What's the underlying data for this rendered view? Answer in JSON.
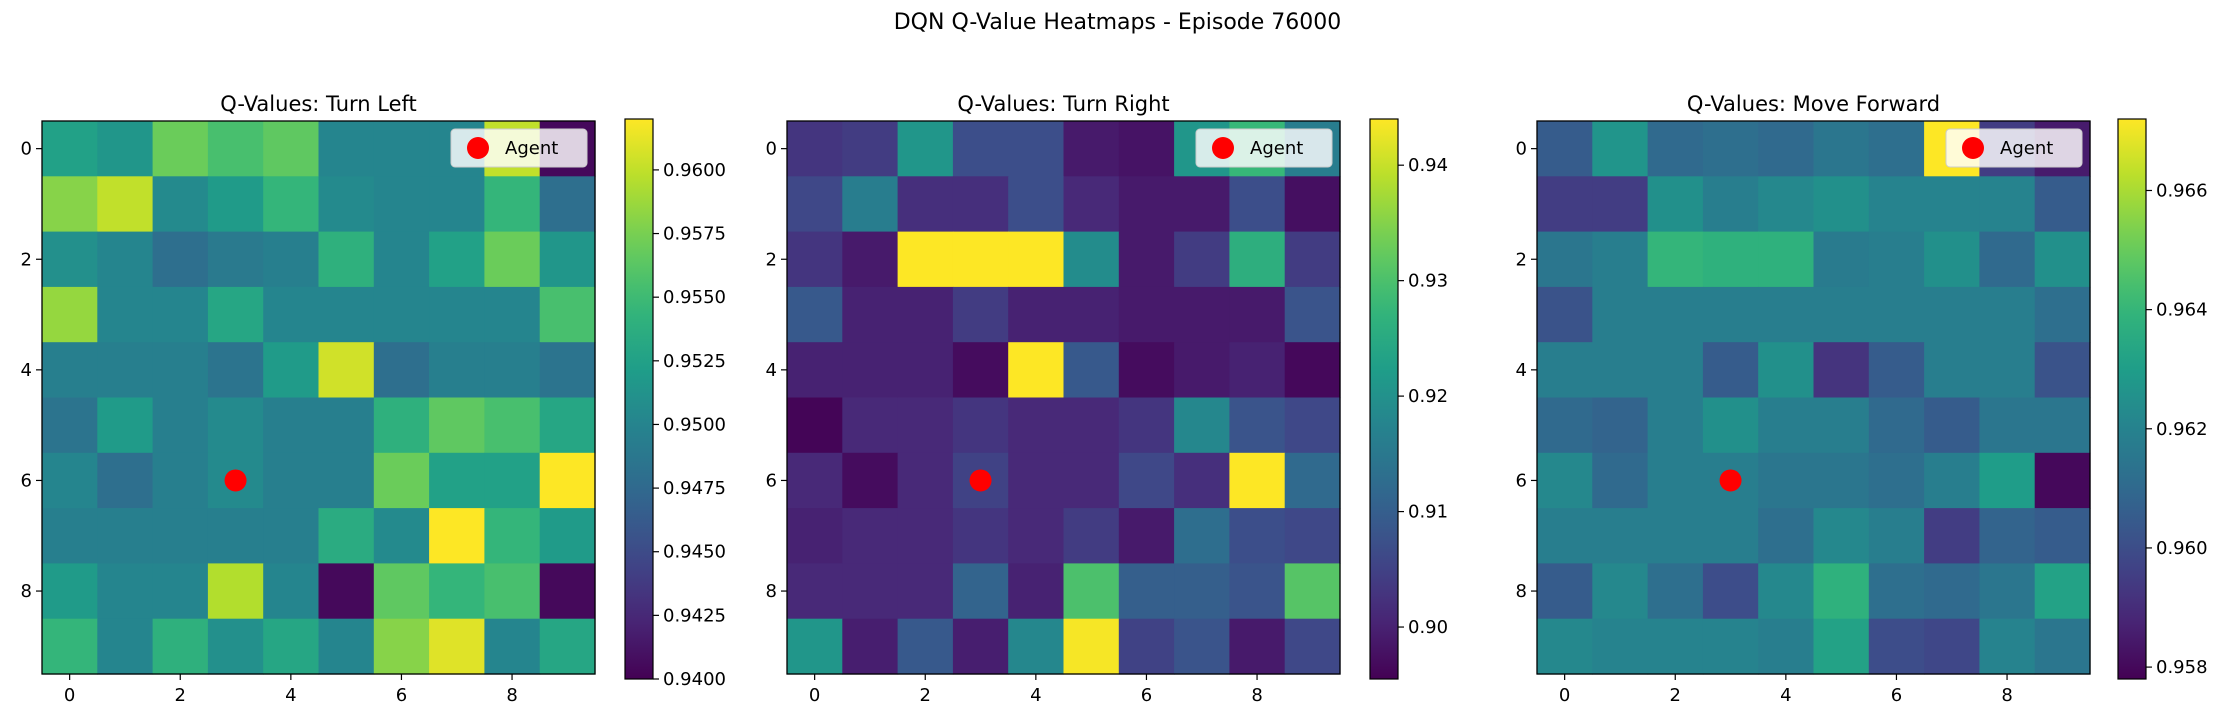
{
  "figure": {
    "suptitle": "DQN Q-Value Heatmaps - Episode 76000"
  },
  "colormap": "viridis",
  "chart_data": [
    {
      "type": "heatmap",
      "title": "Q-Values: Turn Left",
      "xticks": [
        0,
        2,
        4,
        6,
        8
      ],
      "yticks": [
        0,
        2,
        4,
        6,
        8
      ],
      "vmin": 0.94,
      "vmax": 0.962,
      "colorbar_ticks": [
        "0.9400",
        "0.9425",
        "0.9450",
        "0.9475",
        "0.9500",
        "0.9525",
        "0.9550",
        "0.9575",
        "0.9600"
      ],
      "agent": {
        "x": 3,
        "y": 6,
        "label": "Agent",
        "color": "#ff0000"
      },
      "legend": {
        "label": "Agent",
        "position": "upper-right"
      },
      "values": [
        [
          0.9525,
          0.9515,
          0.957,
          0.9555,
          0.9565,
          0.95,
          0.95,
          0.95,
          0.96,
          0.9405
        ],
        [
          0.958,
          0.96,
          0.9505,
          0.952,
          0.9545,
          0.9505,
          0.95,
          0.95,
          0.9545,
          0.948
        ],
        [
          0.951,
          0.95,
          0.948,
          0.949,
          0.9495,
          0.954,
          0.95,
          0.9525,
          0.957,
          0.9515
        ],
        [
          0.9585,
          0.95,
          0.95,
          0.953,
          0.95,
          0.95,
          0.95,
          0.95,
          0.95,
          0.9555
        ],
        [
          0.9495,
          0.9495,
          0.9495,
          0.9485,
          0.952,
          0.9605,
          0.948,
          0.9495,
          0.9495,
          0.9485
        ],
        [
          0.9485,
          0.952,
          0.9495,
          0.9505,
          0.9495,
          0.9495,
          0.954,
          0.9565,
          0.9555,
          0.953
        ],
        [
          0.95,
          0.948,
          0.9495,
          0.9505,
          0.9495,
          0.9495,
          0.957,
          0.9525,
          0.9525,
          0.962
        ],
        [
          0.9495,
          0.9495,
          0.9495,
          0.9495,
          0.9495,
          0.9535,
          0.9505,
          0.962,
          0.9545,
          0.952
        ],
        [
          0.952,
          0.95,
          0.95,
          0.9595,
          0.95,
          0.9405,
          0.9565,
          0.9545,
          0.9555,
          0.9405
        ],
        [
          0.9545,
          0.95,
          0.954,
          0.951,
          0.953,
          0.95,
          0.958,
          0.961,
          0.95,
          0.953
        ]
      ]
    },
    {
      "type": "heatmap",
      "title": "Q-Values: Turn Right",
      "xticks": [
        0,
        2,
        4,
        6,
        8
      ],
      "yticks": [
        0,
        2,
        4,
        6,
        8
      ],
      "vmin": 0.8955,
      "vmax": 0.944,
      "colorbar_ticks": [
        "0.90",
        "0.91",
        "0.92",
        "0.93",
        "0.94"
      ],
      "agent": {
        "x": 3,
        "y": 6,
        "label": "Agent",
        "color": "#ff0000"
      },
      "legend": {
        "label": "Agent",
        "position": "upper-right"
      },
      "values": [
        [
          0.903,
          0.904,
          0.921,
          0.907,
          0.907,
          0.899,
          0.898,
          0.921,
          0.928,
          0.916
        ],
        [
          0.906,
          0.916,
          0.902,
          0.902,
          0.907,
          0.901,
          0.899,
          0.899,
          0.907,
          0.8975
        ],
        [
          0.903,
          0.899,
          0.944,
          0.944,
          0.944,
          0.919,
          0.899,
          0.904,
          0.926,
          0.904
        ],
        [
          0.909,
          0.9,
          0.9,
          0.904,
          0.9,
          0.9,
          0.899,
          0.899,
          0.899,
          0.908
        ],
        [
          0.9,
          0.9,
          0.9,
          0.897,
          0.944,
          0.909,
          0.897,
          0.899,
          0.9,
          0.8965
        ],
        [
          0.896,
          0.901,
          0.901,
          0.903,
          0.901,
          0.901,
          0.903,
          0.918,
          0.908,
          0.906
        ],
        [
          0.901,
          0.897,
          0.901,
          0.905,
          0.901,
          0.901,
          0.906,
          0.902,
          0.944,
          0.912
        ],
        [
          0.9,
          0.901,
          0.901,
          0.903,
          0.901,
          0.904,
          0.899,
          0.913,
          0.907,
          0.906
        ],
        [
          0.901,
          0.901,
          0.901,
          0.911,
          0.9,
          0.93,
          0.91,
          0.91,
          0.908,
          0.931
        ],
        [
          0.921,
          0.8995,
          0.909,
          0.8995,
          0.918,
          0.9435,
          0.905,
          0.908,
          0.899,
          0.906
        ]
      ]
    },
    {
      "type": "heatmap",
      "title": "Q-Values: Move Forward",
      "xticks": [
        0,
        2,
        4,
        6,
        8
      ],
      "yticks": [
        0,
        2,
        4,
        6,
        8
      ],
      "vmin": 0.9578,
      "vmax": 0.9672,
      "colorbar_ticks": [
        "0.958",
        "0.960",
        "0.962",
        "0.964",
        "0.966"
      ],
      "agent": {
        "x": 3,
        "y": 6,
        "label": "Agent",
        "color": "#ff0000"
      },
      "legend": {
        "label": "Agent",
        "position": "upper-right"
      },
      "values": [
        [
          0.9605,
          0.9627,
          0.961,
          0.9612,
          0.961,
          0.9615,
          0.9612,
          0.9672,
          0.9595,
          0.9585
        ],
        [
          0.9595,
          0.9595,
          0.9625,
          0.9618,
          0.9622,
          0.9625,
          0.962,
          0.962,
          0.962,
          0.9605
        ],
        [
          0.9615,
          0.9618,
          0.964,
          0.9638,
          0.9638,
          0.9617,
          0.9618,
          0.9625,
          0.961,
          0.9625
        ],
        [
          0.9602,
          0.9618,
          0.9618,
          0.9618,
          0.9618,
          0.9618,
          0.9618,
          0.9618,
          0.9618,
          0.9612
        ],
        [
          0.9618,
          0.9618,
          0.9618,
          0.9605,
          0.9625,
          0.9592,
          0.9605,
          0.9618,
          0.9618,
          0.9602
        ],
        [
          0.961,
          0.9608,
          0.9618,
          0.9625,
          0.9618,
          0.9618,
          0.961,
          0.9605,
          0.9615,
          0.9615
        ],
        [
          0.9622,
          0.961,
          0.9618,
          0.9618,
          0.9615,
          0.9615,
          0.9612,
          0.9618,
          0.963,
          0.958
        ],
        [
          0.9618,
          0.9618,
          0.9618,
          0.9618,
          0.9612,
          0.9622,
          0.9618,
          0.9595,
          0.9608,
          0.9605
        ],
        [
          0.9605,
          0.9622,
          0.9612,
          0.96,
          0.9622,
          0.9638,
          0.9612,
          0.961,
          0.9615,
          0.9632
        ],
        [
          0.9622,
          0.962,
          0.962,
          0.962,
          0.9618,
          0.9632,
          0.96,
          0.9598,
          0.962,
          0.9615
        ]
      ]
    }
  ]
}
